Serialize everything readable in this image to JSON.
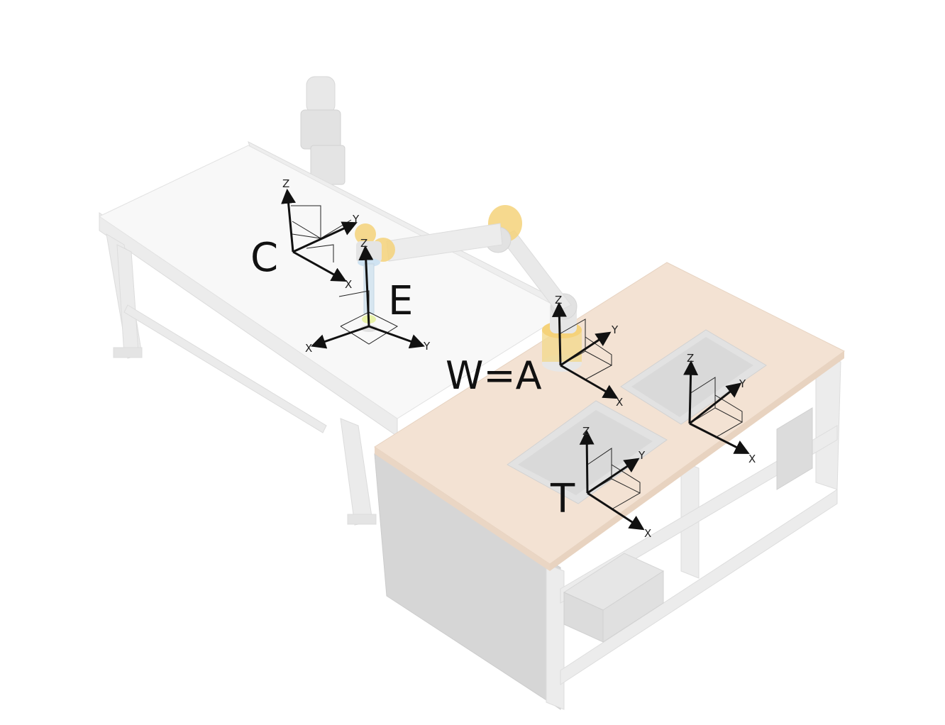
{
  "frames": {
    "camera": {
      "label": "C",
      "axes": {
        "x": "X",
        "y": "Y",
        "z": "Z"
      }
    },
    "effector": {
      "label": "E",
      "axes": {
        "x": "X",
        "y": "Y",
        "z": "Z"
      }
    },
    "world": {
      "label": "W=A",
      "axes": {
        "x": "X",
        "y": "Y",
        "z": "Z"
      }
    },
    "target": {
      "label": "T",
      "axes": {
        "x": "X",
        "y": "Y",
        "z": "Z"
      }
    },
    "tray": {
      "label": "",
      "axes": {
        "x": "X",
        "y": "Y",
        "z": "Z"
      }
    }
  },
  "colors": {
    "table_top": "#f3e2d3",
    "frame_metal": "#e9e9e9",
    "robot_joint": "#f5d27a",
    "robot_link": "#e6e6e6",
    "axis": "#111111"
  }
}
